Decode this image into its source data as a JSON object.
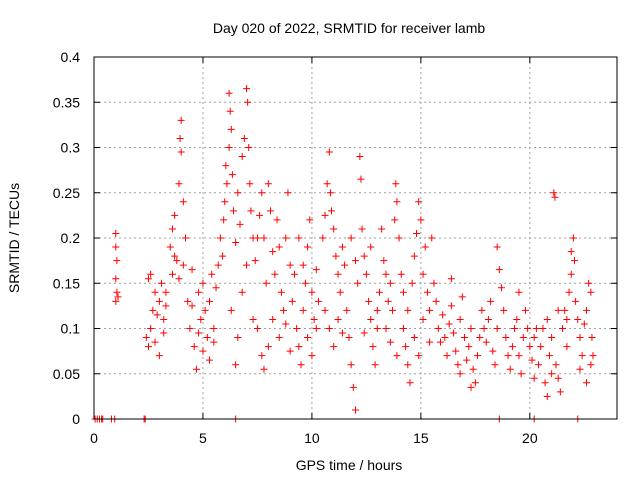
{
  "chart_data": {
    "type": "scatter",
    "title": "Day 020 of 2022, SRMTID for receiver lamb",
    "xlabel": "GPS time / hours",
    "ylabel": "SRMTID / TECUs",
    "xlim": [
      0,
      24
    ],
    "ylim": [
      0,
      0.4
    ],
    "xticks": [
      0,
      5,
      10,
      15,
      20
    ],
    "yticks": [
      0,
      0.05,
      0.1,
      0.15,
      0.2,
      0.25,
      0.3,
      0.35,
      0.4
    ],
    "xtick_labels": [
      "0",
      "5",
      "10",
      "15",
      "20"
    ],
    "ytick_labels": [
      "0",
      "0.05",
      "0.1",
      "0.15",
      "0.2",
      "0.25",
      "0.3",
      "0.35",
      "0.4"
    ],
    "grid": true,
    "marker": "plus",
    "color": "#ff0000",
    "series": [
      {
        "name": "SRMTID",
        "points": [
          [
            0.05,
            0
          ],
          [
            0.15,
            0
          ],
          [
            0.25,
            0
          ],
          [
            0.35,
            0
          ],
          [
            0.4,
            0
          ],
          [
            0.8,
            0
          ],
          [
            0.95,
            0
          ],
          [
            2.3,
            0
          ],
          [
            2.35,
            0
          ],
          [
            6.5,
            0
          ],
          [
            18.6,
            0
          ],
          [
            20.2,
            0
          ],
          [
            22.2,
            0
          ],
          [
            1.0,
            0.205
          ],
          [
            1.0,
            0.19
          ],
          [
            1.05,
            0.175
          ],
          [
            1.0,
            0.155
          ],
          [
            1.05,
            0.14
          ],
          [
            1.0,
            0.13
          ],
          [
            1.1,
            0.135
          ],
          [
            2.4,
            0.09
          ],
          [
            2.5,
            0.08
          ],
          [
            2.6,
            0.1
          ],
          [
            2.7,
            0.12
          ],
          [
            2.8,
            0.14
          ],
          [
            2.9,
            0.115
          ],
          [
            3.0,
            0.13
          ],
          [
            3.1,
            0.15
          ],
          [
            3.2,
            0.11
          ],
          [
            3.3,
            0.14
          ],
          [
            2.5,
            0.155
          ],
          [
            2.6,
            0.16
          ],
          [
            2.8,
            0.085
          ],
          [
            3.0,
            0.07
          ],
          [
            3.2,
            0.095
          ],
          [
            3.3,
            0.125
          ],
          [
            3.5,
            0.19
          ],
          [
            3.6,
            0.21
          ],
          [
            3.7,
            0.225
          ],
          [
            3.8,
            0.175
          ],
          [
            3.9,
            0.26
          ],
          [
            3.95,
            0.31
          ],
          [
            4.0,
            0.33
          ],
          [
            4.0,
            0.295
          ],
          [
            4.1,
            0.24
          ],
          [
            4.2,
            0.2
          ],
          [
            3.6,
            0.16
          ],
          [
            3.7,
            0.18
          ],
          [
            3.9,
            0.155
          ],
          [
            4.1,
            0.17
          ],
          [
            4.3,
            0.13
          ],
          [
            4.4,
            0.1
          ],
          [
            4.5,
            0.125
          ],
          [
            4.6,
            0.08
          ],
          [
            4.7,
            0.055
          ],
          [
            4.8,
            0.14
          ],
          [
            4.9,
            0.11
          ],
          [
            5.0,
            0.15
          ],
          [
            5.1,
            0.12
          ],
          [
            5.2,
            0.09
          ],
          [
            5.3,
            0.13
          ],
          [
            5.4,
            0.16
          ],
          [
            5.5,
            0.1
          ],
          [
            5.6,
            0.145
          ],
          [
            5.7,
            0.17
          ],
          [
            5.8,
            0.2
          ],
          [
            5.9,
            0.18
          ],
          [
            4.5,
            0.165
          ],
          [
            4.8,
            0.095
          ],
          [
            5.0,
            0.075
          ],
          [
            5.3,
            0.065
          ],
          [
            5.5,
            0.085
          ],
          [
            5.95,
            0.22
          ],
          [
            6.0,
            0.24
          ],
          [
            6.05,
            0.28
          ],
          [
            6.1,
            0.26
          ],
          [
            6.2,
            0.3
          ],
          [
            6.2,
            0.36
          ],
          [
            6.25,
            0.34
          ],
          [
            6.3,
            0.32
          ],
          [
            6.35,
            0.27
          ],
          [
            6.4,
            0.23
          ],
          [
            6.5,
            0.195
          ],
          [
            6.6,
            0.25
          ],
          [
            6.7,
            0.215
          ],
          [
            6.8,
            0.29
          ],
          [
            6.9,
            0.31
          ],
          [
            7.0,
            0.365
          ],
          [
            7.05,
            0.35
          ],
          [
            7.1,
            0.3
          ],
          [
            7.15,
            0.26
          ],
          [
            7.2,
            0.23
          ],
          [
            7.3,
            0.2
          ],
          [
            6.3,
            0.12
          ],
          [
            6.6,
            0.09
          ],
          [
            6.8,
            0.14
          ],
          [
            7.0,
            0.17
          ],
          [
            7.3,
            0.11
          ],
          [
            6.5,
            0.06
          ],
          [
            7.4,
            0.175
          ],
          [
            7.5,
            0.2
          ],
          [
            7.6,
            0.225
          ],
          [
            7.7,
            0.25
          ],
          [
            7.8,
            0.2
          ],
          [
            7.9,
            0.15
          ],
          [
            8.0,
            0.26
          ],
          [
            8.1,
            0.23
          ],
          [
            8.2,
            0.185
          ],
          [
            8.3,
            0.16
          ],
          [
            8.4,
            0.22
          ],
          [
            8.5,
            0.19
          ],
          [
            8.6,
            0.14
          ],
          [
            8.7,
            0.12
          ],
          [
            8.8,
            0.2
          ],
          [
            8.9,
            0.25
          ],
          [
            9.0,
            0.17
          ],
          [
            7.5,
            0.1
          ],
          [
            7.7,
            0.07
          ],
          [
            7.8,
            0.055
          ],
          [
            8.0,
            0.08
          ],
          [
            8.2,
            0.11
          ],
          [
            8.5,
            0.09
          ],
          [
            8.8,
            0.105
          ],
          [
            9.0,
            0.075
          ],
          [
            9.1,
            0.13
          ],
          [
            9.2,
            0.16
          ],
          [
            9.3,
            0.1
          ],
          [
            9.4,
            0.08
          ],
          [
            9.5,
            0.06
          ],
          [
            9.6,
            0.12
          ],
          [
            9.7,
            0.15
          ],
          [
            9.8,
            0.19
          ],
          [
            9.9,
            0.22
          ],
          [
            10.0,
            0.14
          ],
          [
            10.1,
            0.11
          ],
          [
            10.2,
            0.165
          ],
          [
            10.3,
            0.13
          ],
          [
            9.4,
            0.2
          ],
          [
            9.6,
            0.17
          ],
          [
            9.8,
            0.09
          ],
          [
            10.0,
            0.07
          ],
          [
            10.2,
            0.1
          ],
          [
            10.5,
            0.2
          ],
          [
            10.6,
            0.225
          ],
          [
            10.7,
            0.26
          ],
          [
            10.8,
            0.295
          ],
          [
            10.85,
            0.25
          ],
          [
            10.9,
            0.23
          ],
          [
            11.0,
            0.21
          ],
          [
            11.1,
            0.18
          ],
          [
            11.2,
            0.16
          ],
          [
            11.3,
            0.14
          ],
          [
            11.4,
            0.19
          ],
          [
            11.5,
            0.17
          ],
          [
            10.6,
            0.12
          ],
          [
            10.8,
            0.1
          ],
          [
            11.0,
            0.08
          ],
          [
            11.2,
            0.11
          ],
          [
            11.4,
            0.095
          ],
          [
            11.6,
            0.12
          ],
          [
            11.7,
            0.09
          ],
          [
            11.8,
            0.06
          ],
          [
            11.9,
            0.035
          ],
          [
            12.0,
            0.01
          ],
          [
            12.1,
            0.15
          ],
          [
            12.2,
            0.29
          ],
          [
            12.25,
            0.265
          ],
          [
            12.3,
            0.21
          ],
          [
            12.4,
            0.18
          ],
          [
            12.5,
            0.16
          ],
          [
            12.6,
            0.13
          ],
          [
            12.7,
            0.11
          ],
          [
            12.8,
            0.08
          ],
          [
            12.9,
            0.06
          ],
          [
            13.0,
            0.12
          ],
          [
            13.1,
            0.14
          ],
          [
            11.8,
            0.2
          ],
          [
            12.0,
            0.175
          ],
          [
            12.4,
            0.095
          ],
          [
            12.7,
            0.19
          ],
          [
            13.0,
            0.1
          ],
          [
            13.2,
            0.21
          ],
          [
            13.3,
            0.175
          ],
          [
            13.4,
            0.16
          ],
          [
            13.5,
            0.13
          ],
          [
            13.6,
            0.15
          ],
          [
            13.7,
            0.12
          ],
          [
            13.8,
            0.22
          ],
          [
            13.85,
            0.26
          ],
          [
            13.9,
            0.24
          ],
          [
            14.0,
            0.2
          ],
          [
            14.1,
            0.16
          ],
          [
            14.2,
            0.1
          ],
          [
            14.3,
            0.08
          ],
          [
            14.4,
            0.06
          ],
          [
            14.5,
            0.04
          ],
          [
            13.4,
            0.1
          ],
          [
            13.6,
            0.085
          ],
          [
            13.9,
            0.07
          ],
          [
            14.2,
            0.14
          ],
          [
            14.4,
            0.12
          ],
          [
            14.6,
            0.15
          ],
          [
            14.7,
            0.18
          ],
          [
            14.8,
            0.205
          ],
          [
            14.9,
            0.24
          ],
          [
            15.0,
            0.22
          ],
          [
            15.1,
            0.16
          ],
          [
            15.2,
            0.19
          ],
          [
            15.3,
            0.14
          ],
          [
            15.4,
            0.12
          ],
          [
            15.5,
            0.2
          ],
          [
            15.6,
            0.15
          ],
          [
            15.7,
            0.13
          ],
          [
            14.7,
            0.09
          ],
          [
            14.9,
            0.07
          ],
          [
            15.1,
            0.11
          ],
          [
            15.4,
            0.085
          ],
          [
            15.8,
            0.1
          ],
          [
            15.9,
            0.085
          ],
          [
            16.0,
            0.115
          ],
          [
            16.1,
            0.09
          ],
          [
            16.2,
            0.07
          ],
          [
            16.3,
            0.105
          ],
          [
            16.4,
            0.125
          ],
          [
            16.5,
            0.095
          ],
          [
            16.6,
            0.075
          ],
          [
            16.7,
            0.06
          ],
          [
            16.8,
            0.11
          ],
          [
            16.9,
            0.135
          ],
          [
            17.0,
            0.09
          ],
          [
            17.1,
            0.065
          ],
          [
            17.2,
            0.08
          ],
          [
            17.3,
            0.1
          ],
          [
            17.4,
            0.055
          ],
          [
            17.5,
            0.04
          ],
          [
            17.6,
            0.07
          ],
          [
            17.7,
            0.09
          ],
          [
            17.8,
            0.12
          ],
          [
            17.9,
            0.1
          ],
          [
            18.0,
            0.085
          ],
          [
            18.1,
            0.11
          ],
          [
            18.2,
            0.13
          ],
          [
            18.3,
            0.075
          ],
          [
            18.4,
            0.06
          ],
          [
            18.5,
            0.1
          ],
          [
            18.6,
            0.165
          ],
          [
            18.7,
            0.145
          ],
          [
            18.8,
            0.12
          ],
          [
            18.9,
            0.09
          ],
          [
            19.0,
            0.07
          ],
          [
            19.1,
            0.055
          ],
          [
            19.2,
            0.08
          ],
          [
            19.3,
            0.1
          ],
          [
            19.4,
            0.11
          ],
          [
            19.5,
            0.07
          ],
          [
            19.6,
            0.05
          ],
          [
            19.7,
            0.09
          ],
          [
            19.8,
            0.12
          ],
          [
            19.9,
            0.1
          ],
          [
            20.0,
            0.08
          ],
          [
            20.1,
            0.065
          ],
          [
            20.2,
            0.09
          ],
          [
            20.3,
            0.1
          ],
          [
            16.4,
            0.155
          ],
          [
            16.8,
            0.05
          ],
          [
            17.3,
            0.035
          ],
          [
            18.5,
            0.19
          ],
          [
            19.5,
            0.14
          ],
          [
            20.2,
            0.045
          ],
          [
            20.4,
            0.06
          ],
          [
            20.5,
            0.08
          ],
          [
            20.6,
            0.1
          ],
          [
            20.7,
            0.04
          ],
          [
            20.8,
            0.025
          ],
          [
            20.9,
            0.07
          ],
          [
            21.0,
            0.09
          ],
          [
            21.1,
            0.25
          ],
          [
            21.15,
            0.245
          ],
          [
            21.2,
            0.06
          ],
          [
            21.3,
            0.045
          ],
          [
            21.4,
            0.03
          ],
          [
            21.5,
            0.1
          ],
          [
            21.6,
            0.12
          ],
          [
            21.7,
            0.11
          ],
          [
            21.8,
            0.14
          ],
          [
            21.9,
            0.16
          ],
          [
            22.0,
            0.2
          ],
          [
            22.05,
            0.175
          ],
          [
            22.1,
            0.13
          ],
          [
            22.2,
            0.11
          ],
          [
            22.3,
            0.09
          ],
          [
            22.4,
            0.07
          ],
          [
            22.5,
            0.105
          ],
          [
            22.6,
            0.12
          ],
          [
            22.7,
            0.15
          ],
          [
            22.8,
            0.14
          ],
          [
            22.85,
            0.09
          ],
          [
            22.9,
            0.07
          ],
          [
            20.8,
            0.11
          ],
          [
            21.0,
            0.05
          ],
          [
            21.3,
            0.12
          ],
          [
            21.7,
            0.08
          ],
          [
            22.3,
            0.055
          ],
          [
            22.8,
            0.06
          ],
          [
            21.9,
            0.185
          ],
          [
            22.6,
            0.04
          ]
        ]
      }
    ]
  }
}
